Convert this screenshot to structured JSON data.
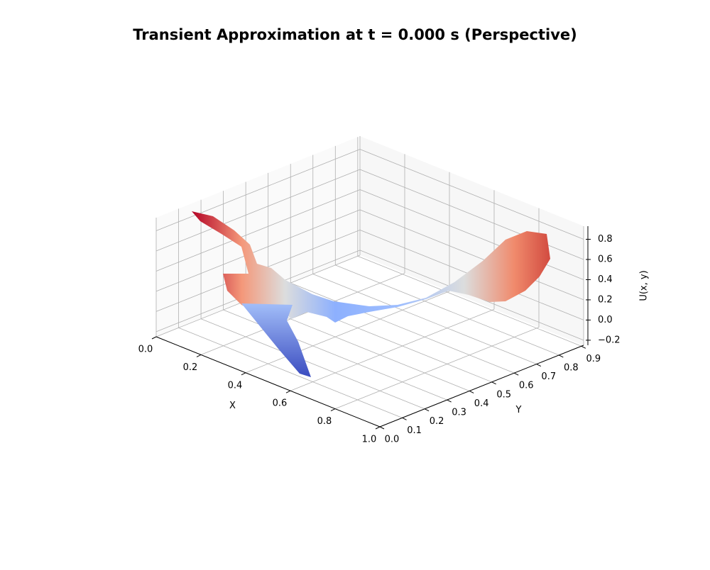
{
  "chart_data": {
    "type": "surface3d",
    "title": "Transient Approximation at t = 0.000 s (Perspective)",
    "xlabel": "X",
    "ylabel": "Y",
    "zlabel": "U(x, y)",
    "xlim": [
      0,
      1
    ],
    "ylim": [
      0,
      0.91
    ],
    "zlim": [
      -0.25,
      0.93
    ],
    "xticks": [
      {
        "value": 0,
        "label": "0.0"
      },
      0.2,
      0.4,
      0.6,
      0.8,
      {
        "value": 1,
        "label": "1.0"
      }
    ],
    "yticks": [
      {
        "value": 0,
        "label": "0.0"
      },
      0.1,
      0.2,
      0.3,
      0.4,
      0.5,
      0.6,
      0.7,
      0.8,
      0.9
    ],
    "zticks": [
      {
        "value": -0.2,
        "label": "−0.2"
      },
      {
        "value": 0,
        "label": "0.0"
      },
      0.2,
      0.4,
      0.6,
      0.8
    ],
    "grid": true,
    "colormap": "coolwarm"
  }
}
